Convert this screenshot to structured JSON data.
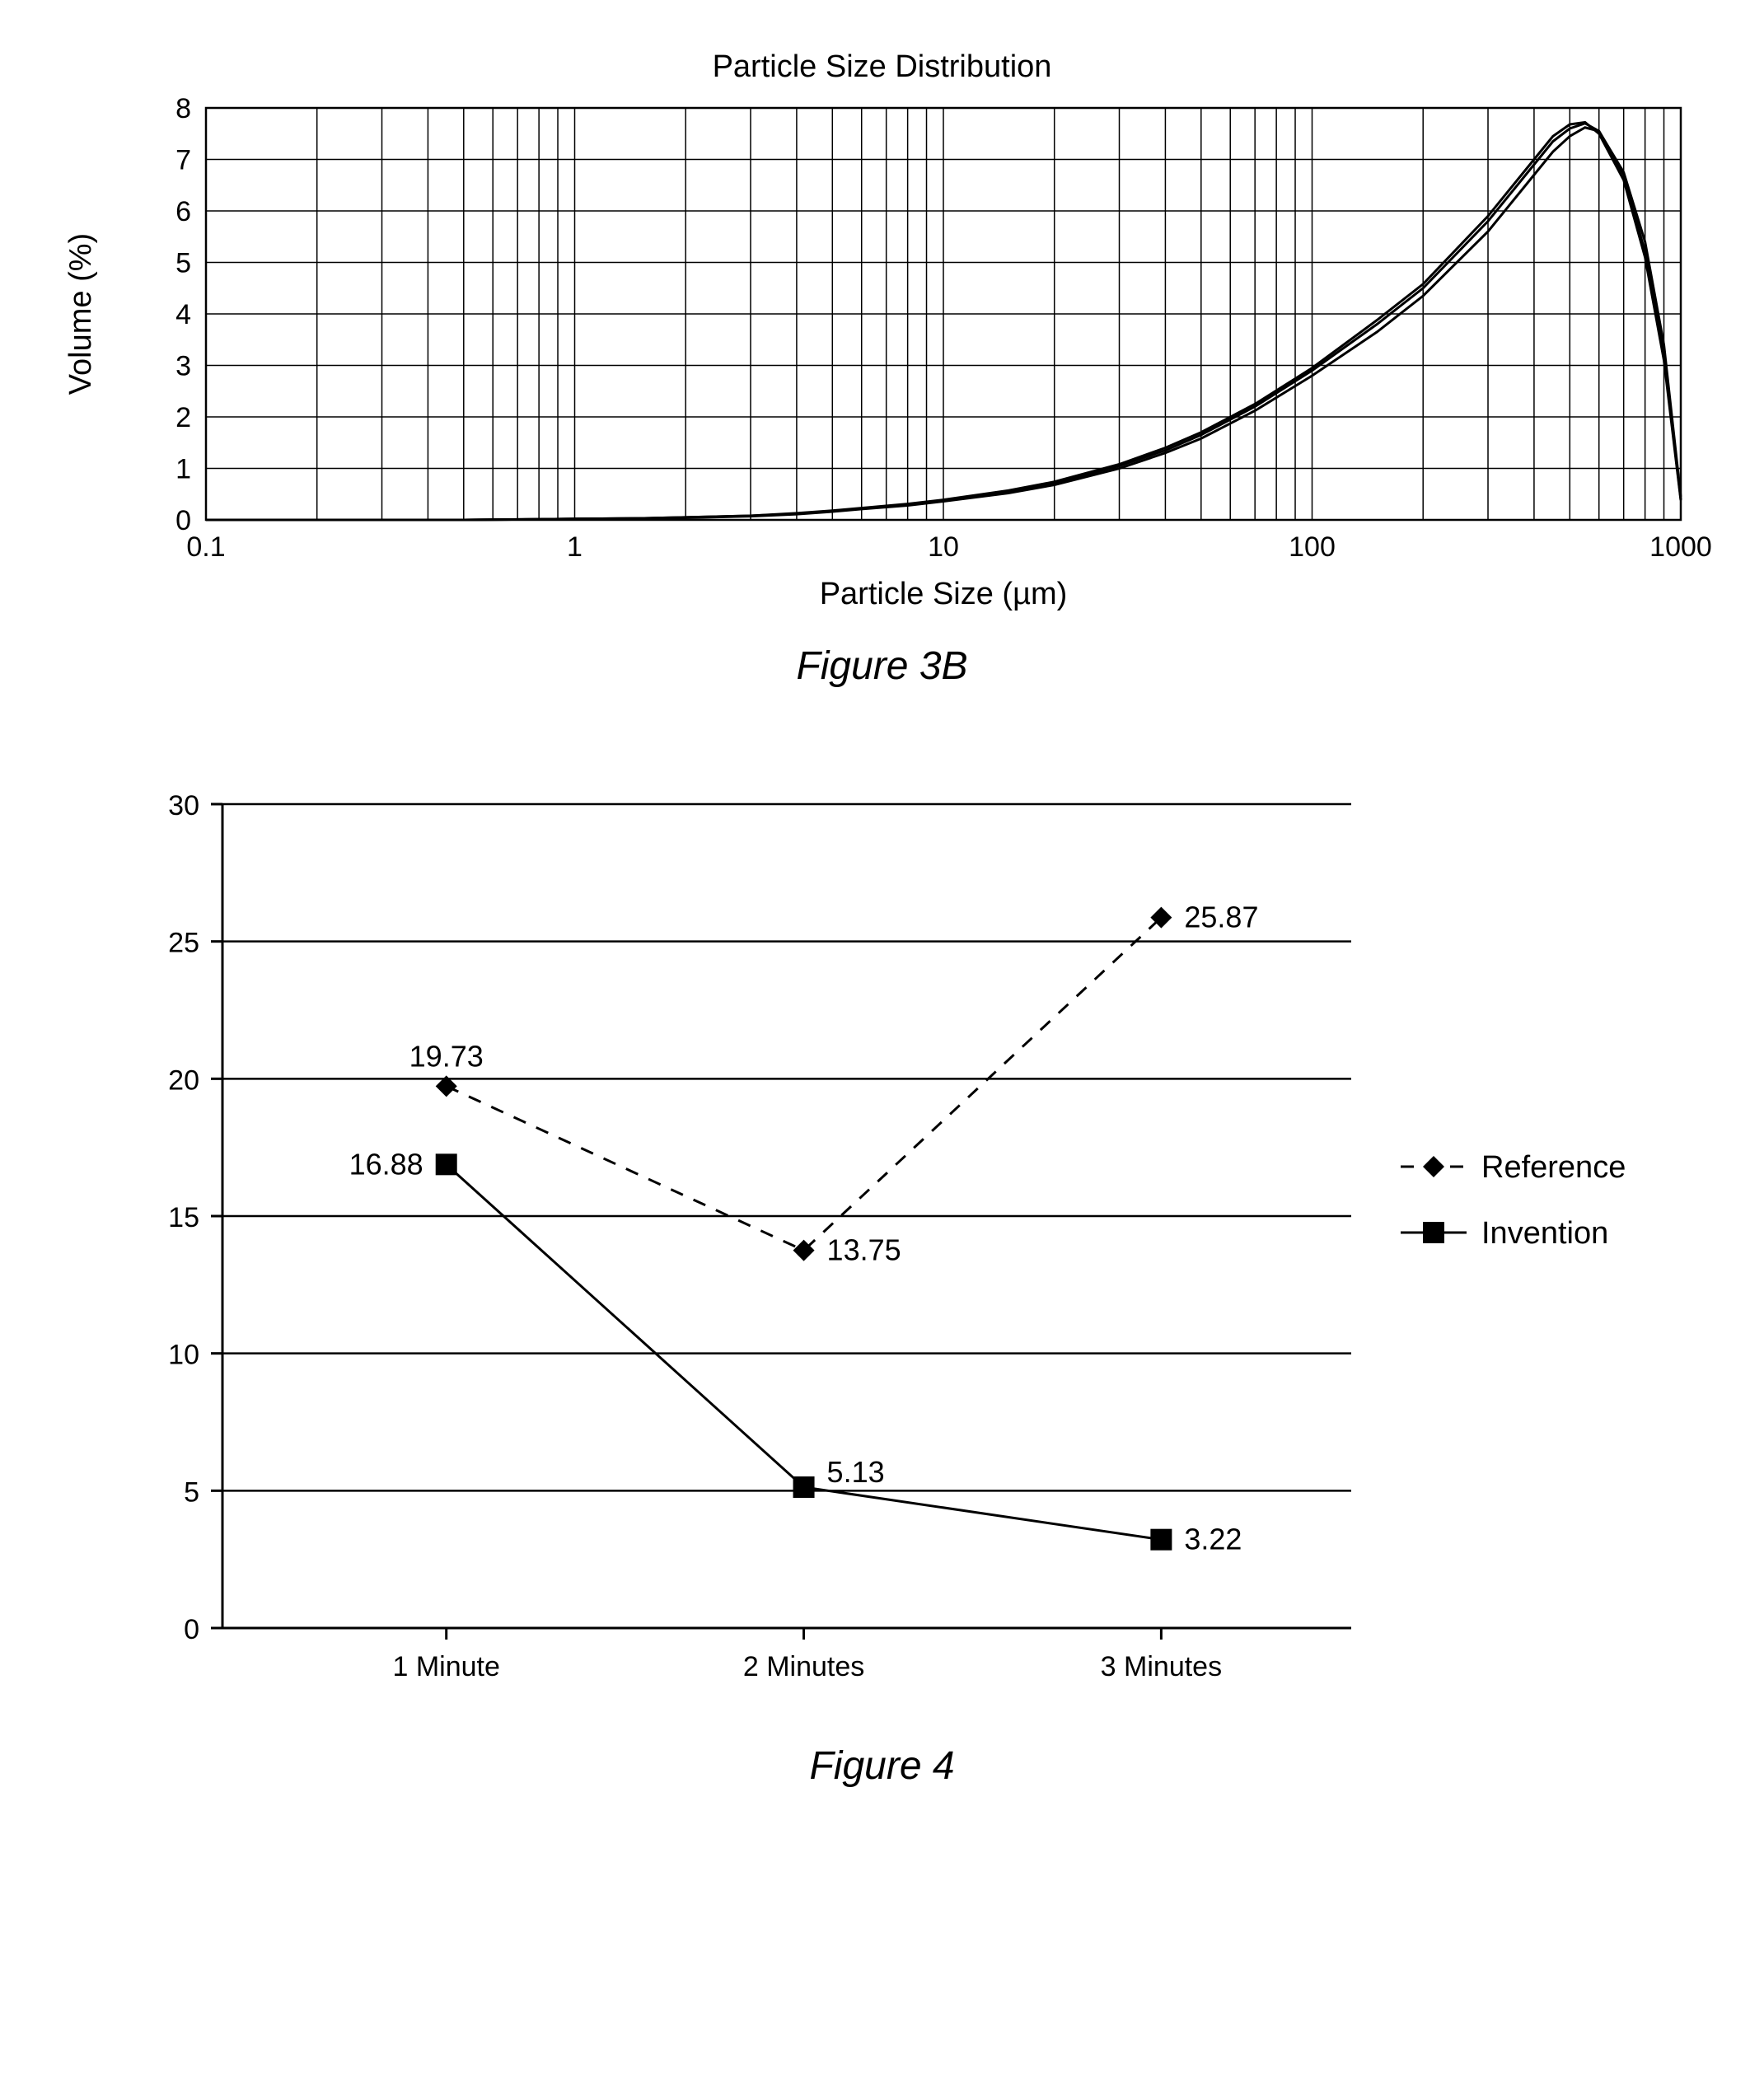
{
  "figure3b": {
    "type": "line-log-x",
    "title": "Particle Size Distribution",
    "xlabel": "Particle Size (µm)",
    "ylabel": "Volume (%)",
    "caption": "Figure 3B",
    "xscale": "log",
    "xlim": [
      0.1,
      1000
    ],
    "ylim": [
      0,
      8
    ],
    "xtick_labels": [
      "0.1",
      "1",
      "10",
      "100",
      "1000"
    ],
    "xtick_values": [
      0.1,
      1,
      10,
      100,
      1000
    ],
    "ytick_step": 1,
    "yticks": [
      0,
      1,
      2,
      3,
      4,
      5,
      6,
      7,
      8
    ],
    "background_color": "#ffffff",
    "grid_color": "#000000",
    "grid_width": 1.5,
    "border_width": 2.5,
    "series": [
      {
        "name": "run1",
        "color": "#000000",
        "line_width": 3,
        "x": [
          0.1,
          0.2,
          0.5,
          1,
          1.5,
          2,
          3,
          4,
          5,
          6,
          8,
          10,
          15,
          20,
          30,
          40,
          50,
          70,
          100,
          150,
          200,
          300,
          400,
          450,
          500,
          550,
          600,
          700,
          800,
          900,
          1000
        ],
        "y": [
          0,
          0,
          0,
          0.02,
          0.03,
          0.05,
          0.08,
          0.12,
          0.17,
          0.22,
          0.3,
          0.38,
          0.55,
          0.72,
          1.05,
          1.35,
          1.65,
          2.2,
          2.9,
          3.8,
          4.5,
          5.8,
          6.9,
          7.35,
          7.6,
          7.7,
          7.55,
          6.7,
          5.2,
          3.2,
          0.4
        ]
      },
      {
        "name": "run2",
        "color": "#000000",
        "line_width": 3,
        "x": [
          0.1,
          0.2,
          0.5,
          1,
          1.5,
          2,
          3,
          4,
          5,
          6,
          8,
          10,
          15,
          20,
          30,
          40,
          50,
          70,
          100,
          150,
          200,
          300,
          400,
          450,
          500,
          550,
          600,
          700,
          800,
          900,
          1000
        ],
        "y": [
          0,
          0,
          0,
          0.02,
          0.03,
          0.04,
          0.07,
          0.11,
          0.16,
          0.21,
          0.28,
          0.36,
          0.52,
          0.68,
          1.0,
          1.3,
          1.58,
          2.12,
          2.8,
          3.65,
          4.35,
          5.6,
          6.7,
          7.15,
          7.45,
          7.62,
          7.55,
          6.75,
          5.4,
          3.4,
          0.45
        ]
      },
      {
        "name": "run3",
        "color": "#000000",
        "line_width": 3,
        "x": [
          0.1,
          0.2,
          0.5,
          1,
          1.5,
          2,
          3,
          4,
          5,
          6,
          8,
          10,
          15,
          20,
          30,
          40,
          50,
          70,
          100,
          150,
          200,
          300,
          400,
          450,
          500,
          550,
          600,
          700,
          800,
          900,
          1000
        ],
        "y": [
          0,
          0,
          0,
          0.02,
          0.03,
          0.05,
          0.08,
          0.13,
          0.18,
          0.23,
          0.31,
          0.39,
          0.57,
          0.74,
          1.08,
          1.4,
          1.7,
          2.25,
          2.95,
          3.88,
          4.58,
          5.9,
          7.0,
          7.45,
          7.68,
          7.72,
          7.5,
          6.6,
          5.1,
          3.1,
          0.38
        ]
      }
    ]
  },
  "figure4": {
    "type": "line-categorical",
    "caption": "Figure 4",
    "ylim": [
      0,
      30
    ],
    "ytick_step": 5,
    "yticks": [
      0,
      5,
      10,
      15,
      20,
      25,
      30
    ],
    "categories": [
      "1 Minute",
      "2 Minutes",
      "3 Minutes"
    ],
    "background_color": "#ffffff",
    "grid_color": "#000000",
    "grid_width": 2.5,
    "axis_width": 3,
    "tick_length": 14,
    "legend": {
      "items": [
        {
          "key": "reference",
          "label": "Reference"
        },
        {
          "key": "invention",
          "label": "Invention"
        }
      ]
    },
    "series": {
      "reference": {
        "label": "Reference",
        "color": "#000000",
        "line_style": "dashed",
        "dash": "16 14",
        "line_width": 3,
        "marker": "diamond",
        "marker_size": 26,
        "values": [
          19.73,
          13.75,
          25.87
        ],
        "value_labels": [
          "19.73",
          "13.75",
          "25.87"
        ],
        "label_pos": [
          "above",
          "right",
          "right"
        ]
      },
      "invention": {
        "label": "Invention",
        "color": "#000000",
        "line_style": "solid",
        "line_width": 3,
        "marker": "square",
        "marker_size": 26,
        "values": [
          16.88,
          5.13,
          3.22
        ],
        "value_labels": [
          "16.88",
          "5.13",
          "3.22"
        ],
        "label_pos": [
          "left",
          "right-above",
          "right"
        ]
      }
    }
  },
  "fonts": {
    "axis_fontsize": 34,
    "label_fontsize": 38,
    "title_fontsize": 38,
    "caption_fontsize": 48,
    "legend_fontsize": 38,
    "data_label_fontsize": 36
  }
}
